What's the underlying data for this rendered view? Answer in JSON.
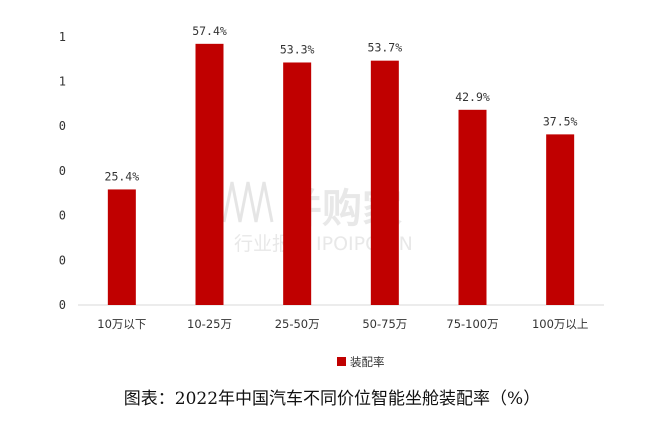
{
  "chart_data": {
    "type": "bar",
    "categories": [
      "10万以下",
      "10-25万",
      "25-50万",
      "50-75万",
      "75-100万",
      "100万以上"
    ],
    "series": [
      {
        "name": "装配率",
        "values": [
          25.4,
          57.4,
          53.3,
          53.7,
          42.9,
          37.5
        ],
        "labels": [
          "25.4%",
          "57.4%",
          "53.3%",
          "53.7%",
          "42.9%",
          "37.5%"
        ]
      }
    ],
    "y_tick_labels": [
      "0",
      "0",
      "0",
      "0",
      "0",
      "1",
      "1"
    ],
    "ylim": [
      0,
      60
    ],
    "grid": false,
    "legend_position": "bottom",
    "colors": {
      "bar": "#c00000",
      "axis": "#d9d9d9"
    }
  },
  "caption": "图表：2022年中国汽车不同价位智能坐舱装配率（%）",
  "watermark": {
    "brand": "并购家",
    "subtitle": "行业报告 IPOIPO.CN"
  }
}
